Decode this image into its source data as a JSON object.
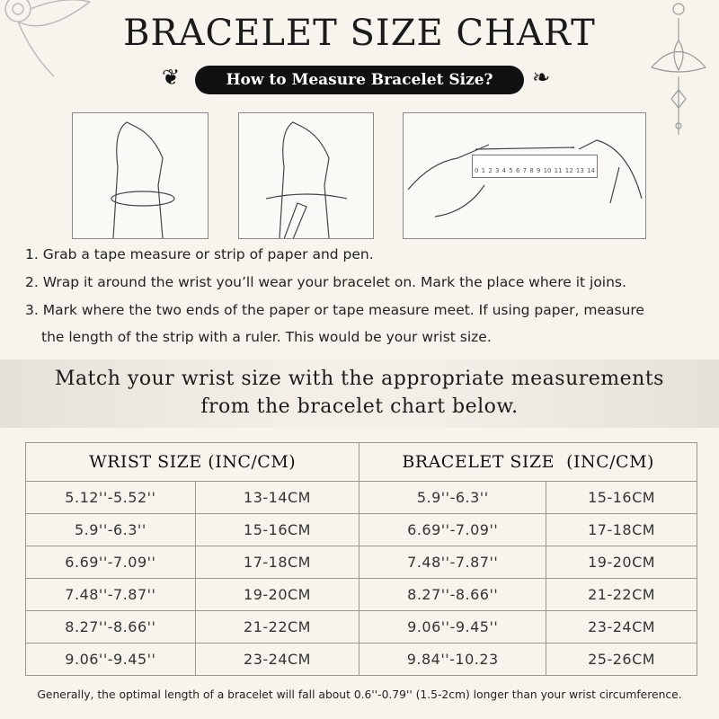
{
  "title": "BRACELET SIZE CHART",
  "subtitle": "How to Measure Bracelet Size?",
  "ruler_labels": [
    "0",
    "1",
    "2",
    "3",
    "4",
    "5",
    "6",
    "7",
    "8",
    "9",
    "10",
    "11",
    "12",
    "13",
    "14"
  ],
  "steps": [
    "1. Grab a tape measure or strip of paper and pen.",
    "2. Wrap it around the wrist you’ll wear your bracelet on. Mark the place where it joins.",
    "3. Mark where the two ends of the paper or tape measure meet. If using paper, measure",
    "the length of the strip with a ruler. This would be your wrist size."
  ],
  "band": {
    "line1": "Match your wrist size with the appropriate measurements",
    "line2": "from the bracelet chart below."
  },
  "table": {
    "headers": [
      "WRIST SIZE (INC/CM)",
      "BRACELET SIZE  (INC/CM)"
    ],
    "rows": [
      [
        "5.12''-5.52''",
        "13-14CM",
        "5.9''-6.3''",
        "15-16CM"
      ],
      [
        "5.9''-6.3''",
        "15-16CM",
        "6.69''-7.09''",
        "17-18CM"
      ],
      [
        "6.69''-7.09''",
        "17-18CM",
        "7.48''-7.87''",
        "19-20CM"
      ],
      [
        "7.48''-7.87''",
        "19-20CM",
        "8.27''-8.66''",
        "21-22CM"
      ],
      [
        "8.27''-8.66''",
        "21-22CM",
        "9.06''-9.45''",
        "23-24CM"
      ],
      [
        "9.06''-9.45''",
        "23-24CM",
        "9.84''-10.23",
        "25-26CM"
      ]
    ]
  },
  "note": "Generally, the optimal length of a bracelet will fall about 0.6''-0.79'' (1.5-2cm) longer than your wrist circumference."
}
